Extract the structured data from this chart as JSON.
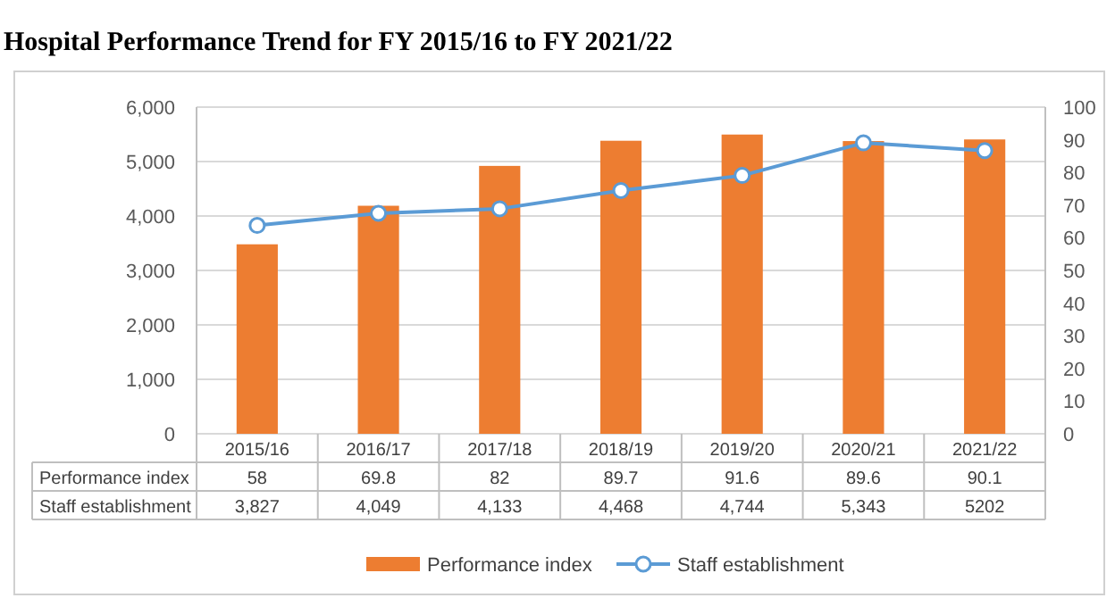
{
  "chart_data": {
    "type": "bar",
    "title": "Hospital Performance Trend for FY 2015/16 to FY 2021/22",
    "categories": [
      "2015/16",
      "2016/17",
      "2017/18",
      "2018/19",
      "2019/20",
      "2020/21",
      "2021/22"
    ],
    "series": [
      {
        "name": "Performance index",
        "axis": "y2",
        "color": "#ed7d31",
        "values": [
          58,
          69.8,
          82,
          89.7,
          91.6,
          89.6,
          90.1
        ],
        "value_labels": [
          "58",
          "69.8",
          "82",
          "89.7",
          "91.6",
          "89.6",
          "90.1"
        ]
      },
      {
        "name": "Staff establishment",
        "type": "line",
        "axis": "y",
        "color": "#5b9bd5",
        "marker": "circle",
        "values": [
          3827,
          4049,
          4133,
          4468,
          4744,
          5343,
          5202
        ],
        "value_labels": [
          "3,827",
          "4,049",
          "4,133",
          "4,468",
          "4,744",
          "5,343",
          "5202"
        ]
      }
    ],
    "ylim": [
      0,
      6000
    ],
    "yticks": [
      {
        "value": 0,
        "label": "0"
      },
      {
        "value": 1000,
        "label": "1,000"
      },
      {
        "value": 2000,
        "label": "2,000"
      },
      {
        "value": 3000,
        "label": "3,000"
      },
      {
        "value": 4000,
        "label": "4,000"
      },
      {
        "value": 5000,
        "label": "5,000"
      },
      {
        "value": 6000,
        "label": "6,000"
      }
    ],
    "y2lim": [
      0,
      100
    ],
    "y2ticks": [
      0,
      10,
      20,
      30,
      40,
      50,
      60,
      70,
      80,
      90,
      100
    ],
    "grid": "y",
    "legend": "bottom"
  }
}
